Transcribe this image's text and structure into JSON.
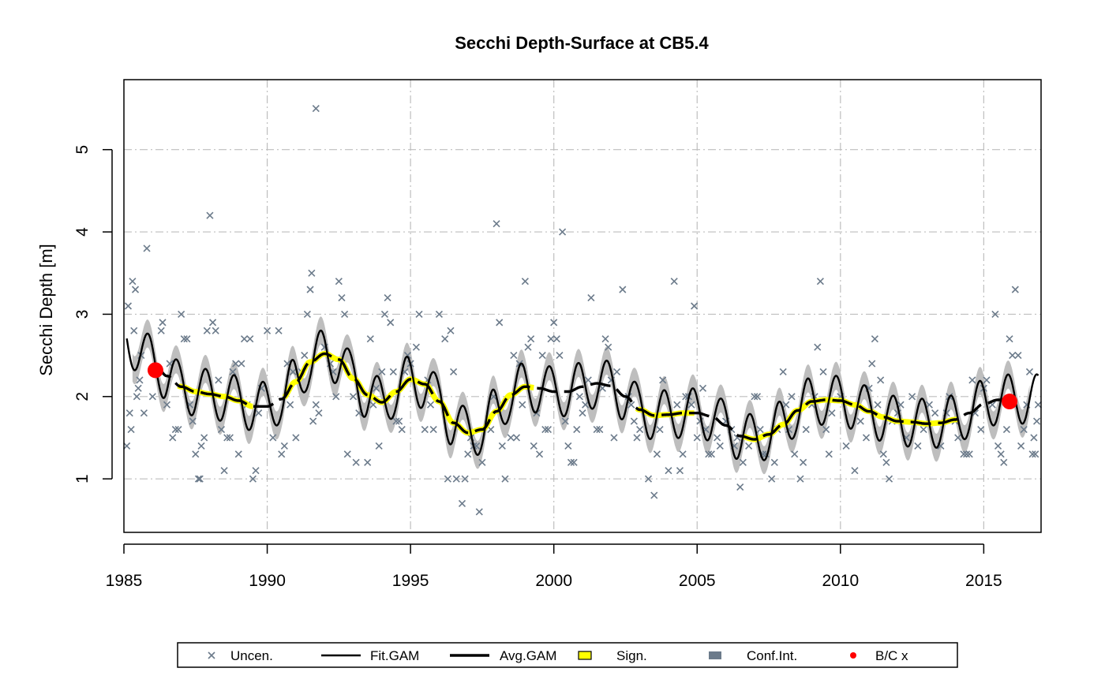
{
  "chart_data": {
    "type": "line",
    "title": "Secchi Depth-Surface at CB5.4",
    "xlabel": "",
    "ylabel": "Secchi Depth [m]",
    "xlim": [
      1985,
      2017
    ],
    "ylim": [
      0.35,
      5.85
    ],
    "xticks": [
      1985,
      1990,
      1995,
      2000,
      2005,
      2010,
      2015
    ],
    "yticks": [
      1,
      2,
      3,
      4,
      5
    ],
    "grid": true,
    "legend_position": "bottom",
    "colors": {
      "uncensored": "#6c7b8b",
      "fit_gam": "#000000",
      "avg_gam": "#000000",
      "significant": "#ffff00",
      "conf_int": "#bebebe",
      "baseline_current": "#ff0000",
      "grid": "#bebebe"
    },
    "legend": [
      {
        "label": "Uncen.",
        "symbol": "cross",
        "color": "#6c7b8b"
      },
      {
        "label": "Fit.GAM",
        "symbol": "thin-line",
        "color": "#000000"
      },
      {
        "label": "Avg.GAM",
        "symbol": "dashed-line",
        "color": "#000000"
      },
      {
        "label": "Sign.",
        "symbol": "box",
        "color": "#ffff00"
      },
      {
        "label": "Conf.Int.",
        "symbol": "box",
        "color": "#6c7b8b"
      },
      {
        "label": "B/C x",
        "symbol": "dot",
        "color": "#ff0000"
      }
    ],
    "avg_gam": {
      "x": [
        1986.1,
        1986.5,
        1987,
        1987.5,
        1988,
        1988.5,
        1989,
        1989.5,
        1990,
        1990.5,
        1991,
        1991.5,
        1992,
        1992.5,
        1993,
        1993.5,
        1994,
        1994.5,
        1995,
        1995.5,
        1996,
        1996.5,
        1997,
        1997.5,
        1998,
        1998.5,
        1999,
        1999.5,
        2000,
        2000.5,
        2001,
        2001.5,
        2002,
        2002.5,
        2003,
        2003.5,
        2004,
        2004.5,
        2005,
        2005.5,
        2006,
        2006.5,
        2007,
        2007.5,
        2008,
        2008.5,
        2009,
        2009.5,
        2010,
        2010.5,
        2011,
        2011.5,
        2012,
        2012.5,
        2013,
        2013.5,
        2014,
        2014.5,
        2015,
        2015.5,
        2016
      ],
      "y": [
        2.38,
        2.25,
        2.12,
        2.06,
        2.03,
        2.0,
        1.95,
        1.88,
        1.88,
        1.97,
        2.18,
        2.42,
        2.52,
        2.45,
        2.22,
        2.02,
        1.93,
        2.06,
        2.21,
        2.15,
        1.94,
        1.68,
        1.56,
        1.6,
        1.82,
        2.02,
        2.12,
        2.1,
        2.06,
        2.06,
        2.12,
        2.16,
        2.13,
        2.0,
        1.84,
        1.77,
        1.78,
        1.8,
        1.8,
        1.76,
        1.65,
        1.52,
        1.48,
        1.54,
        1.66,
        1.83,
        1.94,
        1.96,
        1.95,
        1.9,
        1.82,
        1.75,
        1.7,
        1.69,
        1.67,
        1.68,
        1.72,
        1.8,
        1.91,
        1.96,
        1.97
      ]
    },
    "significant_segments": [
      [
        1986.9,
        1989.5
      ],
      [
        1990.6,
        1999.3
      ],
      [
        2002.9,
        2004.9
      ],
      [
        2006.6,
        2014.1
      ]
    ],
    "conf_int_halfwidth_m": 0.17,
    "seasonal_amplitude_m": 0.3,
    "fit_gam_x_range": [
      1985.1,
      2016.9
    ],
    "uncensored_points": [
      {
        "x": 1985.1,
        "y": 1.4
      },
      {
        "x": 1985.15,
        "y": 3.1
      },
      {
        "x": 1985.2,
        "y": 1.8
      },
      {
        "x": 1985.25,
        "y": 1.6
      },
      {
        "x": 1985.3,
        "y": 3.4
      },
      {
        "x": 1985.35,
        "y": 2.8
      },
      {
        "x": 1985.4,
        "y": 3.3
      },
      {
        "x": 1985.45,
        "y": 2.0
      },
      {
        "x": 1985.5,
        "y": 2.1
      },
      {
        "x": 1985.55,
        "y": 2.2
      },
      {
        "x": 1985.6,
        "y": 2.5
      },
      {
        "x": 1985.7,
        "y": 1.8
      },
      {
        "x": 1985.8,
        "y": 3.8
      },
      {
        "x": 1986.0,
        "y": 2.0
      },
      {
        "x": 1986.3,
        "y": 2.8
      },
      {
        "x": 1986.35,
        "y": 2.9
      },
      {
        "x": 1986.5,
        "y": 1.9
      },
      {
        "x": 1986.6,
        "y": 2.4
      },
      {
        "x": 1986.7,
        "y": 1.5
      },
      {
        "x": 1986.8,
        "y": 1.6
      },
      {
        "x": 1986.9,
        "y": 1.6
      },
      {
        "x": 1987.0,
        "y": 3.0
      },
      {
        "x": 1987.1,
        "y": 2.7
      },
      {
        "x": 1987.2,
        "y": 2.7
      },
      {
        "x": 1987.3,
        "y": 1.9
      },
      {
        "x": 1987.4,
        "y": 1.7
      },
      {
        "x": 1987.5,
        "y": 1.3
      },
      {
        "x": 1987.6,
        "y": 1.0
      },
      {
        "x": 1987.65,
        "y": 1.0
      },
      {
        "x": 1987.7,
        "y": 1.4
      },
      {
        "x": 1987.8,
        "y": 1.5
      },
      {
        "x": 1987.9,
        "y": 2.8
      },
      {
        "x": 1988.0,
        "y": 4.2
      },
      {
        "x": 1988.1,
        "y": 2.9
      },
      {
        "x": 1988.2,
        "y": 2.8
      },
      {
        "x": 1988.3,
        "y": 2.2
      },
      {
        "x": 1988.4,
        "y": 1.6
      },
      {
        "x": 1988.5,
        "y": 1.1
      },
      {
        "x": 1988.6,
        "y": 1.5
      },
      {
        "x": 1988.7,
        "y": 1.5
      },
      {
        "x": 1988.8,
        "y": 2.3
      },
      {
        "x": 1988.9,
        "y": 2.4
      },
      {
        "x": 1989.0,
        "y": 1.3
      },
      {
        "x": 1989.1,
        "y": 2.4
      },
      {
        "x": 1989.2,
        "y": 2.7
      },
      {
        "x": 1989.3,
        "y": 1.9
      },
      {
        "x": 1989.4,
        "y": 2.7
      },
      {
        "x": 1989.5,
        "y": 1.0
      },
      {
        "x": 1989.6,
        "y": 1.1
      },
      {
        "x": 1989.7,
        "y": 1.8
      },
      {
        "x": 1989.8,
        "y": 2.1
      },
      {
        "x": 1990.0,
        "y": 2.8
      },
      {
        "x": 1990.2,
        "y": 1.5
      },
      {
        "x": 1990.4,
        "y": 2.8
      },
      {
        "x": 1990.5,
        "y": 1.3
      },
      {
        "x": 1990.6,
        "y": 1.4
      },
      {
        "x": 1990.7,
        "y": 2.4
      },
      {
        "x": 1990.8,
        "y": 1.9
      },
      {
        "x": 1990.9,
        "y": 2.3
      },
      {
        "x": 1991.0,
        "y": 1.5
      },
      {
        "x": 1991.2,
        "y": 2.3
      },
      {
        "x": 1991.3,
        "y": 2.5
      },
      {
        "x": 1991.4,
        "y": 3.0
      },
      {
        "x": 1991.5,
        "y": 3.3
      },
      {
        "x": 1991.55,
        "y": 3.5
      },
      {
        "x": 1991.6,
        "y": 1.7
      },
      {
        "x": 1991.7,
        "y": 1.9
      },
      {
        "x": 1991.8,
        "y": 1.8
      },
      {
        "x": 1991.7,
        "y": 5.5
      },
      {
        "x": 1992.0,
        "y": 2.6
      },
      {
        "x": 1992.2,
        "y": 2.4
      },
      {
        "x": 1992.3,
        "y": 2.3
      },
      {
        "x": 1992.4,
        "y": 2.0
      },
      {
        "x": 1992.5,
        "y": 3.4
      },
      {
        "x": 1992.6,
        "y": 3.2
      },
      {
        "x": 1992.7,
        "y": 3.0
      },
      {
        "x": 1992.8,
        "y": 1.3
      },
      {
        "x": 1993.0,
        "y": 2.0
      },
      {
        "x": 1993.1,
        "y": 1.2
      },
      {
        "x": 1993.2,
        "y": 1.8
      },
      {
        "x": 1993.5,
        "y": 1.2
      },
      {
        "x": 1993.6,
        "y": 2.7
      },
      {
        "x": 1993.7,
        "y": 1.9
      },
      {
        "x": 1993.8,
        "y": 2.1
      },
      {
        "x": 1993.9,
        "y": 1.4
      },
      {
        "x": 1994.0,
        "y": 2.3
      },
      {
        "x": 1994.1,
        "y": 3.0
      },
      {
        "x": 1994.2,
        "y": 3.2
      },
      {
        "x": 1994.3,
        "y": 2.9
      },
      {
        "x": 1994.4,
        "y": 2.3
      },
      {
        "x": 1994.5,
        "y": 1.7
      },
      {
        "x": 1994.6,
        "y": 1.7
      },
      {
        "x": 1994.7,
        "y": 1.6
      },
      {
        "x": 1994.8,
        "y": 2.3
      },
      {
        "x": 1994.9,
        "y": 2.5
      },
      {
        "x": 1995.0,
        "y": 2.4
      },
      {
        "x": 1995.2,
        "y": 2.6
      },
      {
        "x": 1995.3,
        "y": 3.0
      },
      {
        "x": 1995.5,
        "y": 1.6
      },
      {
        "x": 1995.6,
        "y": 2.2
      },
      {
        "x": 1995.7,
        "y": 1.9
      },
      {
        "x": 1995.8,
        "y": 1.6
      },
      {
        "x": 1996.0,
        "y": 3.0
      },
      {
        "x": 1996.2,
        "y": 2.7
      },
      {
        "x": 1996.3,
        "y": 1.0
      },
      {
        "x": 1996.4,
        "y": 2.8
      },
      {
        "x": 1996.5,
        "y": 2.3
      },
      {
        "x": 1996.6,
        "y": 1.0
      },
      {
        "x": 1996.8,
        "y": 0.7
      },
      {
        "x": 1996.9,
        "y": 1.0
      },
      {
        "x": 1997.0,
        "y": 1.3
      },
      {
        "x": 1997.1,
        "y": 1.5
      },
      {
        "x": 1997.2,
        "y": 1.4
      },
      {
        "x": 1997.3,
        "y": 1.4
      },
      {
        "x": 1997.4,
        "y": 0.6
      },
      {
        "x": 1997.5,
        "y": 1.2
      },
      {
        "x": 1997.8,
        "y": 1.6
      },
      {
        "x": 1997.9,
        "y": 2.0
      },
      {
        "x": 1998.0,
        "y": 4.1
      },
      {
        "x": 1998.1,
        "y": 2.9
      },
      {
        "x": 1998.2,
        "y": 1.4
      },
      {
        "x": 1998.3,
        "y": 1.0
      },
      {
        "x": 1998.5,
        "y": 1.5
      },
      {
        "x": 1998.6,
        "y": 2.5
      },
      {
        "x": 1998.7,
        "y": 1.5
      },
      {
        "x": 1998.8,
        "y": 2.4
      },
      {
        "x": 1998.9,
        "y": 1.9
      },
      {
        "x": 1999.0,
        "y": 3.4
      },
      {
        "x": 1999.1,
        "y": 2.6
      },
      {
        "x": 1999.2,
        "y": 2.7
      },
      {
        "x": 1999.3,
        "y": 1.4
      },
      {
        "x": 1999.4,
        "y": 1.8
      },
      {
        "x": 1999.5,
        "y": 1.3
      },
      {
        "x": 1999.6,
        "y": 2.5
      },
      {
        "x": 1999.7,
        "y": 1.6
      },
      {
        "x": 1999.8,
        "y": 1.6
      },
      {
        "x": 1999.9,
        "y": 2.7
      },
      {
        "x": 2000.0,
        "y": 2.9
      },
      {
        "x": 2000.1,
        "y": 2.7
      },
      {
        "x": 2000.2,
        "y": 2.5
      },
      {
        "x": 2000.3,
        "y": 4.0
      },
      {
        "x": 2000.4,
        "y": 1.7
      },
      {
        "x": 2000.5,
        "y": 1.4
      },
      {
        "x": 2000.6,
        "y": 1.2
      },
      {
        "x": 2000.7,
        "y": 1.2
      },
      {
        "x": 2000.8,
        "y": 1.6
      },
      {
        "x": 2000.9,
        "y": 2.0
      },
      {
        "x": 2001.0,
        "y": 1.8
      },
      {
        "x": 2001.1,
        "y": 1.9
      },
      {
        "x": 2001.2,
        "y": 2.2
      },
      {
        "x": 2001.3,
        "y": 3.2
      },
      {
        "x": 2001.5,
        "y": 1.6
      },
      {
        "x": 2001.6,
        "y": 1.6
      },
      {
        "x": 2001.7,
        "y": 2.1
      },
      {
        "x": 2001.8,
        "y": 2.7
      },
      {
        "x": 2001.9,
        "y": 2.6
      },
      {
        "x": 2002.0,
        "y": 2.2
      },
      {
        "x": 2002.1,
        "y": 1.5
      },
      {
        "x": 2002.2,
        "y": 2.3
      },
      {
        "x": 2002.4,
        "y": 3.3
      },
      {
        "x": 2002.6,
        "y": 2.0
      },
      {
        "x": 2002.7,
        "y": 1.9
      },
      {
        "x": 2002.8,
        "y": 1.7
      },
      {
        "x": 2002.9,
        "y": 1.5
      },
      {
        "x": 2003.0,
        "y": 1.6
      },
      {
        "x": 2003.3,
        "y": 1.0
      },
      {
        "x": 2003.5,
        "y": 0.8
      },
      {
        "x": 2003.6,
        "y": 1.3
      },
      {
        "x": 2003.7,
        "y": 1.6
      },
      {
        "x": 2003.8,
        "y": 2.2
      },
      {
        "x": 2004.0,
        "y": 1.1
      },
      {
        "x": 2004.2,
        "y": 3.4
      },
      {
        "x": 2004.3,
        "y": 1.9
      },
      {
        "x": 2004.4,
        "y": 1.1
      },
      {
        "x": 2004.5,
        "y": 1.3
      },
      {
        "x": 2004.6,
        "y": 2.0
      },
      {
        "x": 2004.7,
        "y": 2.0
      },
      {
        "x": 2004.8,
        "y": 1.9
      },
      {
        "x": 2004.9,
        "y": 3.1
      },
      {
        "x": 2005.0,
        "y": 1.5
      },
      {
        "x": 2005.1,
        "y": 1.7
      },
      {
        "x": 2005.2,
        "y": 2.1
      },
      {
        "x": 2005.3,
        "y": 1.6
      },
      {
        "x": 2005.4,
        "y": 1.3
      },
      {
        "x": 2005.5,
        "y": 1.3
      },
      {
        "x": 2005.7,
        "y": 1.5
      },
      {
        "x": 2005.8,
        "y": 1.4
      },
      {
        "x": 2006.0,
        "y": 1.7
      },
      {
        "x": 2006.2,
        "y": 1.6
      },
      {
        "x": 2006.3,
        "y": 1.4
      },
      {
        "x": 2006.4,
        "y": 1.5
      },
      {
        "x": 2006.5,
        "y": 0.9
      },
      {
        "x": 2006.6,
        "y": 1.2
      },
      {
        "x": 2006.8,
        "y": 1.4
      },
      {
        "x": 2007.0,
        "y": 2.0
      },
      {
        "x": 2007.1,
        "y": 2.0
      },
      {
        "x": 2007.2,
        "y": 1.6
      },
      {
        "x": 2007.3,
        "y": 1.3
      },
      {
        "x": 2007.4,
        "y": 1.3
      },
      {
        "x": 2007.6,
        "y": 1.0
      },
      {
        "x": 2007.7,
        "y": 1.2
      },
      {
        "x": 2007.8,
        "y": 1.6
      },
      {
        "x": 2008.0,
        "y": 2.3
      },
      {
        "x": 2008.1,
        "y": 1.9
      },
      {
        "x": 2008.2,
        "y": 1.6
      },
      {
        "x": 2008.3,
        "y": 2.0
      },
      {
        "x": 2008.4,
        "y": 1.3
      },
      {
        "x": 2008.6,
        "y": 1.0
      },
      {
        "x": 2008.7,
        "y": 1.2
      },
      {
        "x": 2008.8,
        "y": 1.6
      },
      {
        "x": 2009.0,
        "y": 1.9
      },
      {
        "x": 2009.1,
        "y": 2.0
      },
      {
        "x": 2009.2,
        "y": 2.6
      },
      {
        "x": 2009.3,
        "y": 3.4
      },
      {
        "x": 2009.4,
        "y": 2.3
      },
      {
        "x": 2009.5,
        "y": 1.6
      },
      {
        "x": 2009.6,
        "y": 1.3
      },
      {
        "x": 2009.7,
        "y": 1.8
      },
      {
        "x": 2010.0,
        "y": 2.0
      },
      {
        "x": 2010.2,
        "y": 1.4
      },
      {
        "x": 2010.5,
        "y": 1.1
      },
      {
        "x": 2010.7,
        "y": 1.7
      },
      {
        "x": 2010.9,
        "y": 1.5
      },
      {
        "x": 2011.0,
        "y": 2.1
      },
      {
        "x": 2011.1,
        "y": 2.4
      },
      {
        "x": 2011.2,
        "y": 2.7
      },
      {
        "x": 2011.3,
        "y": 1.9
      },
      {
        "x": 2011.4,
        "y": 2.2
      },
      {
        "x": 2011.5,
        "y": 1.3
      },
      {
        "x": 2011.6,
        "y": 1.2
      },
      {
        "x": 2011.7,
        "y": 1.0
      },
      {
        "x": 2011.8,
        "y": 1.7
      },
      {
        "x": 2012.0,
        "y": 1.8
      },
      {
        "x": 2012.1,
        "y": 1.9
      },
      {
        "x": 2012.3,
        "y": 1.5
      },
      {
        "x": 2012.5,
        "y": 2.0
      },
      {
        "x": 2012.7,
        "y": 1.4
      },
      {
        "x": 2012.9,
        "y": 1.6
      },
      {
        "x": 2013.1,
        "y": 1.9
      },
      {
        "x": 2013.3,
        "y": 1.8
      },
      {
        "x": 2013.5,
        "y": 1.4
      },
      {
        "x": 2013.7,
        "y": 1.8
      },
      {
        "x": 2013.8,
        "y": 2.0
      },
      {
        "x": 2014.0,
        "y": 1.7
      },
      {
        "x": 2014.1,
        "y": 1.5
      },
      {
        "x": 2014.3,
        "y": 1.3
      },
      {
        "x": 2014.4,
        "y": 1.3
      },
      {
        "x": 2014.5,
        "y": 1.3
      },
      {
        "x": 2014.6,
        "y": 2.2
      },
      {
        "x": 2014.7,
        "y": 1.8
      },
      {
        "x": 2014.9,
        "y": 1.6
      },
      {
        "x": 2015.0,
        "y": 2.1
      },
      {
        "x": 2015.1,
        "y": 2.2
      },
      {
        "x": 2015.3,
        "y": 1.9
      },
      {
        "x": 2015.4,
        "y": 3.0
      },
      {
        "x": 2015.5,
        "y": 1.4
      },
      {
        "x": 2015.6,
        "y": 1.3
      },
      {
        "x": 2015.7,
        "y": 1.2
      },
      {
        "x": 2015.8,
        "y": 1.6
      },
      {
        "x": 2015.9,
        "y": 2.7
      },
      {
        "x": 2016.0,
        "y": 2.5
      },
      {
        "x": 2016.1,
        "y": 3.3
      },
      {
        "x": 2016.2,
        "y": 2.5
      },
      {
        "x": 2016.3,
        "y": 1.4
      },
      {
        "x": 2016.4,
        "y": 1.6
      },
      {
        "x": 2016.5,
        "y": 1.9
      },
      {
        "x": 2016.6,
        "y": 2.3
      },
      {
        "x": 2016.7,
        "y": 1.3
      },
      {
        "x": 2016.75,
        "y": 1.5
      },
      {
        "x": 2016.8,
        "y": 1.3
      },
      {
        "x": 2016.85,
        "y": 1.7
      },
      {
        "x": 2016.9,
        "y": 1.9
      }
    ],
    "bc_points": [
      {
        "x": 1986.1,
        "y": 2.32
      },
      {
        "x": 2015.9,
        "y": 1.94
      }
    ]
  }
}
